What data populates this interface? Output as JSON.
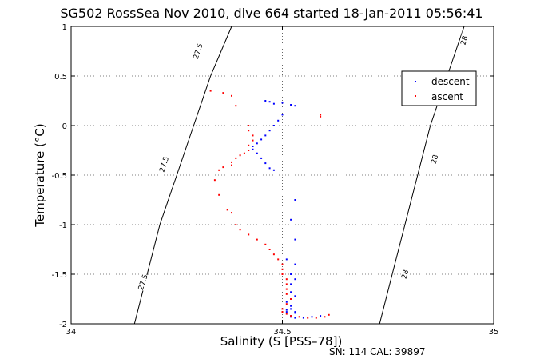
{
  "chart_data": {
    "type": "scatter",
    "title": "SG502 RossSea Nov 2010, dive 664 started 18-Jan-2011 05:56:41",
    "xlabel": "Salinity (S [PSS–78])",
    "ylabel": "Temperature (°C)",
    "xlim": [
      34,
      35
    ],
    "ylim": [
      -2,
      1
    ],
    "xticks": [
      34,
      34.5,
      35
    ],
    "yticks": [
      -2,
      -1.5,
      -1,
      -0.5,
      0,
      0.5,
      1
    ],
    "xtick_labels": [
      "34",
      "34.5",
      "35"
    ],
    "ytick_labels": [
      "-2",
      "-1.5",
      "-1",
      "-0.5",
      "0",
      "0.5",
      "1"
    ],
    "grid": true,
    "legend_position": "top-right",
    "contours": [
      {
        "label": "27.5",
        "points": [
          [
            34.38,
            1.0
          ],
          [
            34.33,
            0.5
          ],
          [
            34.29,
            0.0
          ],
          [
            34.25,
            -0.5
          ],
          [
            34.21,
            -1.0
          ],
          [
            34.18,
            -1.5
          ],
          [
            34.15,
            -2.0
          ]
        ],
        "label_points": [
          [
            34.3,
            0.75
          ],
          [
            34.22,
            -0.39
          ],
          [
            34.17,
            -1.58
          ]
        ]
      },
      {
        "label": "28",
        "points": [
          [
            34.93,
            1.0
          ],
          [
            34.89,
            0.5
          ],
          [
            34.85,
            0.0
          ],
          [
            34.82,
            -0.5
          ],
          [
            34.79,
            -1.0
          ],
          [
            34.76,
            -1.5
          ],
          [
            34.73,
            -2.0
          ]
        ],
        "label_points": [
          [
            34.93,
            0.86
          ],
          [
            34.86,
            -0.34
          ],
          [
            34.79,
            -1.5
          ]
        ]
      }
    ],
    "series": [
      {
        "name": "descent",
        "color": "#0000ff",
        "x": [
          34.46,
          34.47,
          34.48,
          34.5,
          34.52,
          34.53,
          34.5,
          34.49,
          34.48,
          34.47,
          34.46,
          34.45,
          34.44,
          34.43,
          34.43,
          34.44,
          34.45,
          34.46,
          34.47,
          34.48,
          34.53,
          34.52,
          34.53,
          34.51,
          34.53,
          34.52,
          34.53,
          34.52,
          34.52,
          34.53,
          34.52,
          34.51,
          34.52,
          34.52,
          34.51,
          34.53,
          34.51,
          34.53,
          34.52,
          34.52,
          34.53,
          34.55,
          34.57,
          34.59
        ],
        "y": [
          0.25,
          0.24,
          0.22,
          0.23,
          0.21,
          0.2,
          0.11,
          0.05,
          0.0,
          -0.05,
          -0.1,
          -0.14,
          -0.18,
          -0.21,
          -0.24,
          -0.28,
          -0.33,
          -0.38,
          -0.43,
          -0.45,
          -0.75,
          -0.95,
          -1.15,
          -1.35,
          -1.4,
          -1.5,
          -1.55,
          -1.6,
          -1.68,
          -1.72,
          -1.75,
          -1.78,
          -1.82,
          -1.85,
          -1.86,
          -1.88,
          -1.88,
          -1.89,
          -1.92,
          -1.93,
          -1.94,
          -1.94,
          -1.93,
          -1.92
        ]
      },
      {
        "name": "ascent",
        "color": "#ff0000",
        "x": [
          34.33,
          34.36,
          34.38,
          34.39,
          34.42,
          34.42,
          34.43,
          34.43,
          34.42,
          34.42,
          34.41,
          34.4,
          34.39,
          34.38,
          34.38,
          34.36,
          34.35,
          34.34,
          34.35,
          34.37,
          34.38,
          34.39,
          34.4,
          34.42,
          34.44,
          34.46,
          34.47,
          34.48,
          34.49,
          34.5,
          34.5,
          34.5,
          34.51,
          34.51,
          34.51,
          34.51,
          34.52,
          34.51,
          34.5,
          34.5,
          34.51,
          34.52,
          34.54,
          34.56,
          34.58,
          34.6,
          34.61,
          34.59,
          34.59
        ],
        "y": [
          0.35,
          0.33,
          0.3,
          0.2,
          0.0,
          -0.05,
          -0.1,
          -0.15,
          -0.2,
          -0.25,
          -0.28,
          -0.3,
          -0.33,
          -0.37,
          -0.4,
          -0.42,
          -0.45,
          -0.55,
          -0.7,
          -0.85,
          -0.88,
          -1.0,
          -1.05,
          -1.1,
          -1.15,
          -1.2,
          -1.25,
          -1.3,
          -1.35,
          -1.4,
          -1.45,
          -1.5,
          -1.55,
          -1.6,
          -1.65,
          -1.7,
          -1.75,
          -1.8,
          -1.85,
          -1.88,
          -1.9,
          -1.92,
          -1.93,
          -1.94,
          -1.94,
          -1.93,
          -1.91,
          0.09,
          0.11
        ]
      }
    ]
  },
  "footer": "SN: 114  CAL: 39897"
}
